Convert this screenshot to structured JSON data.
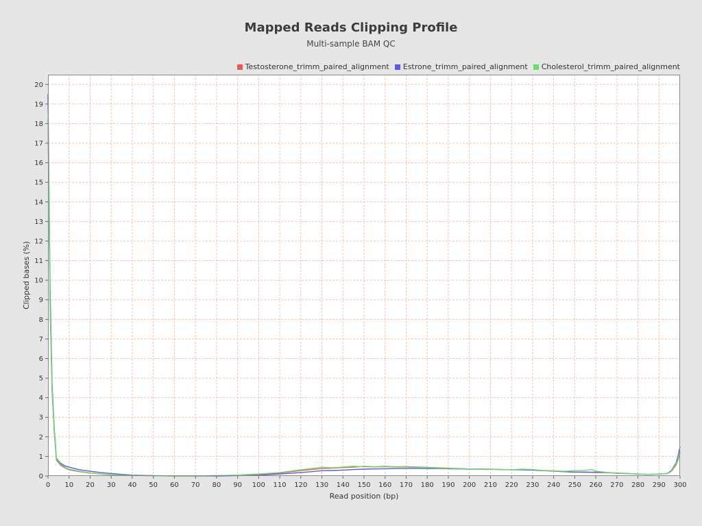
{
  "chart_data": {
    "type": "line",
    "title": "Mapped Reads Clipping Profile",
    "subtitle": "Multi-sample BAM QC",
    "xlabel": "Read position (bp)",
    "ylabel": "Clipped bases (%)",
    "xlim": [
      0,
      300
    ],
    "ylim": [
      0,
      20.5
    ],
    "x_ticks": [
      0,
      10,
      20,
      30,
      40,
      50,
      60,
      70,
      80,
      90,
      100,
      110,
      120,
      130,
      140,
      150,
      160,
      170,
      180,
      190,
      200,
      210,
      220,
      230,
      240,
      250,
      260,
      270,
      280,
      290,
      300
    ],
    "y_ticks": [
      0,
      1,
      2,
      3,
      4,
      5,
      6,
      7,
      8,
      9,
      10,
      11,
      12,
      13,
      14,
      15,
      16,
      17,
      18,
      19,
      20
    ],
    "grid": true,
    "legend_position": "top-right",
    "series": [
      {
        "name": "Testosterone_trimm_paired_alignment",
        "color": "#e85a5a",
        "points": [
          [
            0,
            18.2
          ],
          [
            1,
            8.5
          ],
          [
            2,
            4.2
          ],
          [
            3,
            2.2
          ],
          [
            4,
            0.8
          ],
          [
            6,
            0.55
          ],
          [
            8,
            0.42
          ],
          [
            10,
            0.32
          ],
          [
            15,
            0.22
          ],
          [
            20,
            0.15
          ],
          [
            25,
            0.1
          ],
          [
            30,
            0.06
          ],
          [
            35,
            0.04
          ],
          [
            40,
            0.03
          ],
          [
            50,
            0.01
          ],
          [
            60,
            0.0
          ],
          [
            70,
            0.0
          ],
          [
            80,
            0.02
          ],
          [
            90,
            0.04
          ],
          [
            100,
            0.08
          ],
          [
            110,
            0.15
          ],
          [
            120,
            0.28
          ],
          [
            125,
            0.33
          ],
          [
            130,
            0.38
          ],
          [
            135,
            0.4
          ],
          [
            140,
            0.43
          ],
          [
            145,
            0.46
          ],
          [
            150,
            0.49
          ],
          [
            155,
            0.47
          ],
          [
            160,
            0.49
          ],
          [
            165,
            0.47
          ],
          [
            170,
            0.48
          ],
          [
            175,
            0.46
          ],
          [
            180,
            0.44
          ],
          [
            185,
            0.42
          ],
          [
            190,
            0.4
          ],
          [
            195,
            0.38
          ],
          [
            200,
            0.36
          ],
          [
            205,
            0.36
          ],
          [
            210,
            0.35
          ],
          [
            215,
            0.33
          ],
          [
            220,
            0.32
          ],
          [
            225,
            0.33
          ],
          [
            230,
            0.32
          ],
          [
            235,
            0.28
          ],
          [
            240,
            0.27
          ],
          [
            245,
            0.22
          ],
          [
            250,
            0.2
          ],
          [
            255,
            0.2
          ],
          [
            260,
            0.18
          ],
          [
            265,
            0.18
          ],
          [
            270,
            0.13
          ],
          [
            275,
            0.12
          ],
          [
            280,
            0.1
          ],
          [
            285,
            0.08
          ],
          [
            290,
            0.1
          ],
          [
            294,
            0.12
          ],
          [
            296,
            0.25
          ],
          [
            298,
            0.55
          ],
          [
            299,
            0.8
          ],
          [
            300,
            1.2
          ]
        ]
      },
      {
        "name": "Estrone_trimm_paired_alignment",
        "color": "#5a5ae6",
        "points": [
          [
            0,
            19.5
          ],
          [
            1,
            9.5
          ],
          [
            2,
            4.6
          ],
          [
            3,
            2.4
          ],
          [
            4,
            0.9
          ],
          [
            6,
            0.65
          ],
          [
            8,
            0.52
          ],
          [
            10,
            0.45
          ],
          [
            15,
            0.32
          ],
          [
            20,
            0.24
          ],
          [
            25,
            0.18
          ],
          [
            30,
            0.13
          ],
          [
            35,
            0.08
          ],
          [
            40,
            0.05
          ],
          [
            50,
            0.02
          ],
          [
            60,
            0.0
          ],
          [
            70,
            0.0
          ],
          [
            80,
            0.0
          ],
          [
            90,
            0.02
          ],
          [
            100,
            0.04
          ],
          [
            110,
            0.1
          ],
          [
            120,
            0.18
          ],
          [
            125,
            0.22
          ],
          [
            130,
            0.27
          ],
          [
            135,
            0.28
          ],
          [
            140,
            0.3
          ],
          [
            145,
            0.33
          ],
          [
            150,
            0.35
          ],
          [
            155,
            0.36
          ],
          [
            160,
            0.37
          ],
          [
            165,
            0.38
          ],
          [
            170,
            0.39
          ],
          [
            175,
            0.39
          ],
          [
            180,
            0.38
          ],
          [
            185,
            0.38
          ],
          [
            190,
            0.37
          ],
          [
            195,
            0.36
          ],
          [
            200,
            0.35
          ],
          [
            205,
            0.35
          ],
          [
            210,
            0.34
          ],
          [
            215,
            0.33
          ],
          [
            220,
            0.32
          ],
          [
            225,
            0.32
          ],
          [
            230,
            0.3
          ],
          [
            235,
            0.27
          ],
          [
            240,
            0.25
          ],
          [
            245,
            0.22
          ],
          [
            250,
            0.2
          ],
          [
            255,
            0.19
          ],
          [
            260,
            0.2
          ],
          [
            265,
            0.18
          ],
          [
            270,
            0.15
          ],
          [
            275,
            0.13
          ],
          [
            280,
            0.1
          ],
          [
            285,
            0.08
          ],
          [
            290,
            0.1
          ],
          [
            294,
            0.13
          ],
          [
            296,
            0.3
          ],
          [
            298,
            0.65
          ],
          [
            299,
            1.0
          ],
          [
            300,
            1.5
          ]
        ]
      },
      {
        "name": "Cholesterol_trimm_paired_alignment",
        "color": "#66e066",
        "points": [
          [
            0,
            18.6
          ],
          [
            1,
            8.8
          ],
          [
            2,
            4.3
          ],
          [
            3,
            2.3
          ],
          [
            4,
            0.85
          ],
          [
            6,
            0.6
          ],
          [
            8,
            0.45
          ],
          [
            10,
            0.35
          ],
          [
            15,
            0.24
          ],
          [
            20,
            0.16
          ],
          [
            25,
            0.11
          ],
          [
            30,
            0.07
          ],
          [
            35,
            0.04
          ],
          [
            40,
            0.03
          ],
          [
            50,
            0.01
          ],
          [
            60,
            0.0
          ],
          [
            70,
            0.0
          ],
          [
            80,
            0.02
          ],
          [
            90,
            0.05
          ],
          [
            100,
            0.1
          ],
          [
            110,
            0.18
          ],
          [
            120,
            0.32
          ],
          [
            125,
            0.38
          ],
          [
            130,
            0.45
          ],
          [
            135,
            0.42
          ],
          [
            140,
            0.46
          ],
          [
            145,
            0.5
          ],
          [
            150,
            0.47
          ],
          [
            155,
            0.46
          ],
          [
            160,
            0.47
          ],
          [
            165,
            0.46
          ],
          [
            170,
            0.46
          ],
          [
            175,
            0.44
          ],
          [
            180,
            0.43
          ],
          [
            185,
            0.41
          ],
          [
            190,
            0.39
          ],
          [
            195,
            0.37
          ],
          [
            200,
            0.36
          ],
          [
            205,
            0.35
          ],
          [
            210,
            0.34
          ],
          [
            215,
            0.33
          ],
          [
            220,
            0.32
          ],
          [
            225,
            0.35
          ],
          [
            230,
            0.33
          ],
          [
            235,
            0.28
          ],
          [
            240,
            0.26
          ],
          [
            245,
            0.24
          ],
          [
            250,
            0.27
          ],
          [
            255,
            0.28
          ],
          [
            258,
            0.34
          ],
          [
            260,
            0.25
          ],
          [
            265,
            0.19
          ],
          [
            270,
            0.14
          ],
          [
            275,
            0.12
          ],
          [
            280,
            0.1
          ],
          [
            285,
            0.08
          ],
          [
            290,
            0.1
          ],
          [
            294,
            0.12
          ],
          [
            296,
            0.27
          ],
          [
            298,
            0.6
          ],
          [
            299,
            0.85
          ],
          [
            300,
            1.3
          ]
        ]
      }
    ]
  }
}
